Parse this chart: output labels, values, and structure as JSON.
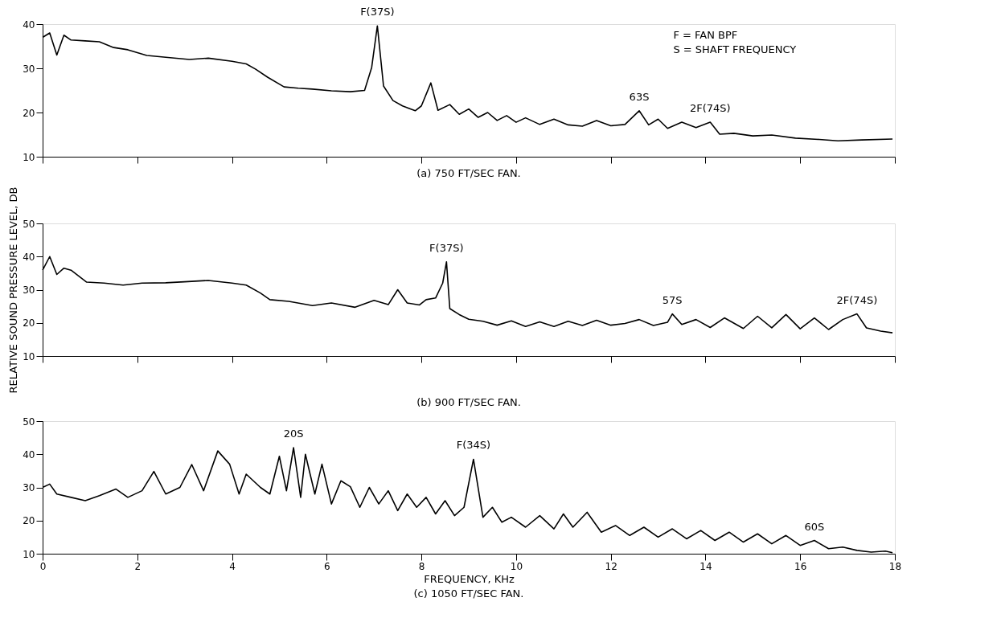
{
  "chart_data": [
    {
      "type": "line",
      "title": "(a) 750 FT/SEC FAN.",
      "xlim": [
        0,
        18
      ],
      "xticks": [
        0,
        2,
        4,
        6,
        8,
        10,
        12,
        14,
        16,
        18
      ],
      "ylim": [
        10,
        40
      ],
      "yticks": [
        10,
        20,
        30,
        40
      ],
      "tick_labels": "y",
      "x": [
        0,
        0.15,
        0.3,
        0.45,
        0.6,
        0.9,
        1.2,
        1.5,
        1.8,
        2.2,
        2.6,
        3.1,
        3.5,
        4.0,
        4.3,
        4.5,
        4.75,
        5.1,
        5.4,
        5.7,
        6.1,
        6.5,
        6.8,
        6.95,
        7.07,
        7.2,
        7.4,
        7.6,
        7.87,
        8.0,
        8.2,
        8.35,
        8.6,
        8.8,
        9.0,
        9.2,
        9.4,
        9.6,
        9.8,
        10.0,
        10.2,
        10.5,
        10.8,
        11.1,
        11.4,
        11.7,
        12.0,
        12.3,
        12.6,
        12.8,
        13.0,
        13.2,
        13.5,
        13.8,
        14.1,
        14.3,
        14.6,
        15.0,
        15.4,
        15.9,
        16.4,
        16.8,
        17.3,
        17.95
      ],
      "series": [
        {
          "color": "#000000",
          "values": [
            37,
            38,
            33,
            37.5,
            36.4,
            36.2,
            36,
            34.7,
            34.2,
            32.9,
            32.5,
            32,
            32.3,
            31.6,
            31,
            29.8,
            28,
            25.8,
            25.5,
            25.3,
            24.9,
            24.7,
            25,
            30.2,
            39.6,
            26,
            22.7,
            21.5,
            20.4,
            21.5,
            26.7,
            20.5,
            21.8,
            19.6,
            20.8,
            18.9,
            20,
            18.2,
            19.3,
            17.8,
            18.8,
            17.3,
            18.5,
            17.2,
            16.9,
            18.2,
            17,
            17.3,
            20.4,
            17.2,
            18.5,
            16.4,
            17.8,
            16.6,
            17.8,
            15.1,
            15.3,
            14.7,
            14.9,
            14.2,
            13.9,
            13.6,
            13.8,
            14
          ]
        }
      ],
      "annotations": [
        {
          "text": "F(37S)",
          "x": 7.07,
          "y": 39.6
        },
        {
          "text": "63S",
          "x": 12.6,
          "y": 20.4
        },
        {
          "text": "2F(74S)",
          "x": 14.1,
          "y": 17.8
        },
        "F = FAN BPF",
        "S = SHAFT FREQUENCY"
      ]
    },
    {
      "type": "line",
      "title": "(b) 900 FT/SEC FAN.",
      "ylabel": "RELATIVE SOUND PRESSURE LEVEL, DB",
      "xlim": [
        0,
        18
      ],
      "xticks": [
        0,
        2,
        4,
        6,
        8,
        10,
        12,
        14,
        16,
        18
      ],
      "ylim": [
        10,
        50
      ],
      "yticks": [
        10,
        20,
        30,
        40,
        50
      ],
      "tick_labels": "y",
      "x": [
        0,
        0.15,
        0.3,
        0.45,
        0.6,
        0.93,
        1.3,
        1.7,
        2.1,
        2.6,
        3.0,
        3.5,
        4.0,
        4.3,
        4.6,
        4.8,
        5.2,
        5.7,
        6.1,
        6.6,
        7.0,
        7.3,
        7.5,
        7.7,
        7.96,
        8.1,
        8.3,
        8.45,
        8.53,
        8.6,
        8.8,
        9.0,
        9.3,
        9.6,
        9.9,
        10.2,
        10.5,
        10.8,
        11.1,
        11.4,
        11.7,
        12.0,
        12.3,
        12.6,
        12.9,
        13.2,
        13.3,
        13.5,
        13.8,
        14.1,
        14.4,
        14.8,
        15.1,
        15.4,
        15.7,
        16.0,
        16.3,
        16.6,
        16.9,
        17.2,
        17.4,
        17.7,
        17.95
      ],
      "series": [
        {
          "color": "#000000",
          "values": [
            35.9,
            40,
            34.6,
            36.5,
            35.9,
            32.3,
            32,
            31.4,
            32,
            32.1,
            32.4,
            32.8,
            32,
            31.4,
            29,
            27,
            26.5,
            25.2,
            26,
            24.7,
            26.8,
            25.5,
            30,
            26,
            25.4,
            27,
            27.5,
            32,
            38.4,
            24.3,
            22.5,
            21.1,
            20.5,
            19.3,
            20.6,
            18.9,
            20.3,
            18.9,
            20.5,
            19.2,
            20.8,
            19.3,
            19.8,
            21,
            19.2,
            20.2,
            22.7,
            19.5,
            21,
            18.6,
            21.5,
            18.3,
            22,
            18.5,
            22.5,
            18.2,
            21.5,
            18,
            21,
            22.7,
            18.5,
            17.5,
            17
          ]
        }
      ],
      "annotations": [
        {
          "text": "F(37S)",
          "x": 8.53,
          "y": 38.4
        },
        {
          "text": "57S",
          "x": 13.3,
          "y": 22.7
        },
        {
          "text": "2F(74S)",
          "x": 17.2,
          "y": 22.7
        }
      ]
    },
    {
      "type": "line",
      "title": "(c) 1050 FT/SEC FAN.",
      "xlabel": "FREQUENCY, KHz",
      "xlim": [
        0,
        18
      ],
      "xticks": [
        0,
        2,
        4,
        6,
        8,
        10,
        12,
        14,
        16,
        18
      ],
      "ylim": [
        10,
        50
      ],
      "yticks": [
        10,
        20,
        30,
        40,
        50
      ],
      "x": [
        0,
        0.15,
        0.3,
        0.6,
        0.9,
        1.2,
        1.55,
        1.8,
        2.1,
        2.35,
        2.6,
        2.9,
        3.15,
        3.4,
        3.7,
        3.95,
        4.15,
        4.3,
        4.6,
        4.8,
        5.0,
        5.15,
        5.3,
        5.45,
        5.55,
        5.75,
        5.9,
        6.1,
        6.3,
        6.5,
        6.7,
        6.9,
        7.1,
        7.3,
        7.5,
        7.7,
        7.9,
        8.1,
        8.3,
        8.5,
        8.7,
        8.9,
        9.1,
        9.3,
        9.5,
        9.7,
        9.9,
        10.2,
        10.5,
        10.8,
        11.0,
        11.2,
        11.5,
        11.8,
        12.1,
        12.4,
        12.7,
        13.0,
        13.3,
        13.6,
        13.9,
        14.2,
        14.5,
        14.8,
        15.1,
        15.4,
        15.7,
        16.0,
        16.3,
        16.6,
        16.9,
        17.2,
        17.5,
        17.8,
        17.95
      ],
      "series": [
        {
          "color": "#000000",
          "values": [
            30,
            31,
            28,
            27,
            26,
            27.5,
            29.5,
            27,
            29,
            34.8,
            28,
            30,
            36.9,
            29,
            41,
            37,
            28,
            34,
            30,
            28,
            39.4,
            29,
            42,
            27,
            40,
            28,
            37,
            25,
            32,
            30.2,
            24,
            30,
            25,
            29,
            23,
            28,
            24,
            27,
            22,
            26,
            21.5,
            24,
            38.5,
            21,
            24,
            19.5,
            21,
            18,
            21.5,
            17.5,
            22,
            18,
            22.5,
            16.5,
            18.5,
            15.5,
            18,
            15,
            17.5,
            14.5,
            17,
            14,
            16.5,
            13.5,
            16,
            13,
            15.5,
            12.5,
            14,
            11.5,
            12,
            11,
            10.5,
            10.8,
            10.3
          ]
        }
      ],
      "annotations": [
        {
          "text": "20S",
          "x": 5.3,
          "y": 42
        },
        {
          "text": "F(34S)",
          "x": 9.1,
          "y": 38.5
        },
        {
          "text": "60S",
          "x": 16.3,
          "y": 14
        }
      ]
    }
  ]
}
